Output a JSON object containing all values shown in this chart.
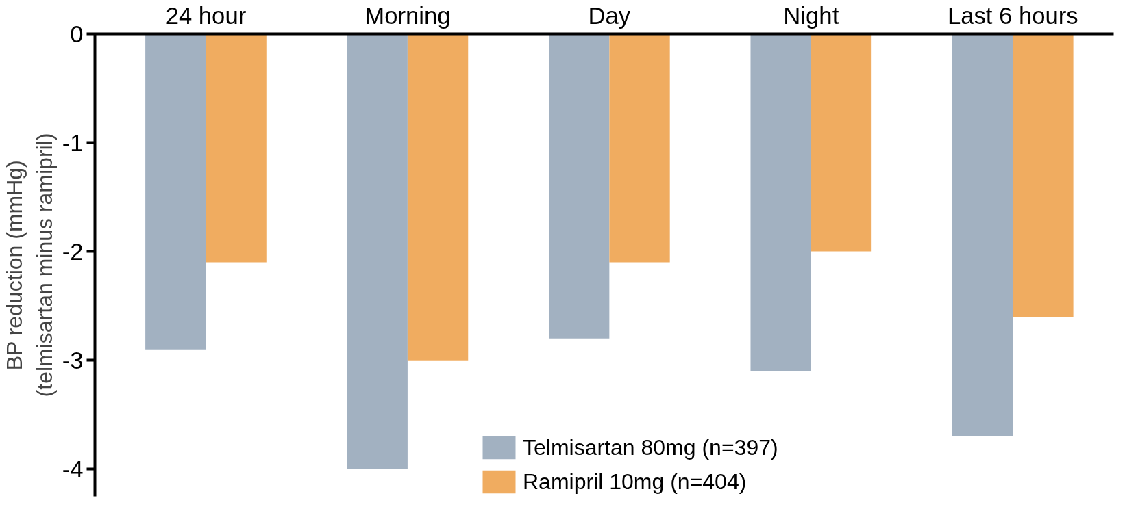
{
  "chart_data": {
    "type": "bar",
    "ylabel": "BP reduction (mmHg)\n(telmisartan minus ramipril)",
    "categories": [
      "24 hour",
      "Morning",
      "Day",
      "Night",
      "Last 6 hours"
    ],
    "series": [
      {
        "name": "Telmisartan 80mg (n=397)",
        "color": "#a2b1c1",
        "values": [
          -2.9,
          -4.0,
          -2.8,
          -3.1,
          -3.7
        ]
      },
      {
        "name": "Ramipril 10mg (n=404)",
        "color": "#f0ac60",
        "values": [
          -2.1,
          -3.0,
          -2.1,
          -2.0,
          -2.6
        ]
      }
    ],
    "ylim": [
      -4.25,
      0
    ],
    "yticks": [
      0,
      -1,
      -2,
      -3,
      -4
    ],
    "grid": false,
    "legend": "bottom"
  }
}
